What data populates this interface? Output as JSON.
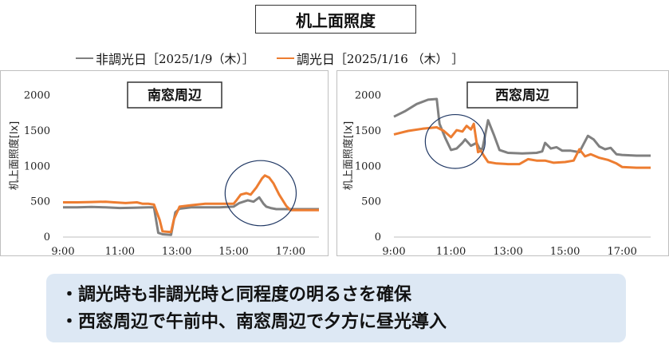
{
  "title": "机上面照度",
  "legend": [
    {
      "name": "非調光日",
      "date": "［2025/1/9（木）］",
      "color": "#808080"
    },
    {
      "name": "調光日",
      "date": "［2025/1/16 （木） ］",
      "color": "#ed7d31"
    }
  ],
  "chart_data": [
    {
      "type": "line",
      "title": "南窓周辺",
      "ylabel": "机上面照度[lx]",
      "xlabel": "",
      "x_ticks": [
        "9:00",
        "11:00",
        "13:00",
        "15:00",
        "17:00"
      ],
      "y_ticks": [
        0,
        500,
        1000,
        1500,
        2000
      ],
      "xlim": [
        9,
        18
      ],
      "ylim": [
        0,
        2300
      ],
      "grid": false,
      "series": [
        {
          "name": "非調光日",
          "color": "#808080",
          "points": [
            [
              9,
              420
            ],
            [
              9.5,
              420
            ],
            [
              10,
              425
            ],
            [
              10.5,
              420
            ],
            [
              11,
              410
            ],
            [
              11.5,
              415
            ],
            [
              12,
              420
            ],
            [
              12.2,
              420
            ],
            [
              12.35,
              60
            ],
            [
              12.5,
              40
            ],
            [
              12.8,
              30
            ],
            [
              12.95,
              350
            ],
            [
              13.1,
              400
            ],
            [
              13.5,
              420
            ],
            [
              14,
              420
            ],
            [
              14.5,
              420
            ],
            [
              15,
              430
            ],
            [
              15.2,
              480
            ],
            [
              15.5,
              520
            ],
            [
              15.7,
              500
            ],
            [
              15.9,
              560
            ],
            [
              16.05,
              470
            ],
            [
              16.15,
              430
            ],
            [
              16.3,
              410
            ],
            [
              16.5,
              395
            ],
            [
              17,
              395
            ],
            [
              17.5,
              395
            ],
            [
              18,
              395
            ]
          ]
        },
        {
          "name": "調光日",
          "color": "#ed7d31",
          "points": [
            [
              9,
              490
            ],
            [
              9.5,
              490
            ],
            [
              10,
              495
            ],
            [
              10.5,
              500
            ],
            [
              10.8,
              490
            ],
            [
              11.2,
              480
            ],
            [
              11.6,
              490
            ],
            [
              11.8,
              470
            ],
            [
              12,
              470
            ],
            [
              12.2,
              460
            ],
            [
              12.4,
              240
            ],
            [
              12.5,
              80
            ],
            [
              12.8,
              70
            ],
            [
              12.9,
              250
            ],
            [
              13.1,
              430
            ],
            [
              13.5,
              450
            ],
            [
              14,
              470
            ],
            [
              14.5,
              470
            ],
            [
              15,
              470
            ],
            [
              15.1,
              520
            ],
            [
              15.25,
              600
            ],
            [
              15.45,
              620
            ],
            [
              15.6,
              600
            ],
            [
              15.8,
              700
            ],
            [
              16,
              830
            ],
            [
              16.1,
              870
            ],
            [
              16.25,
              840
            ],
            [
              16.4,
              760
            ],
            [
              16.6,
              600
            ],
            [
              16.85,
              440
            ],
            [
              17,
              380
            ],
            [
              17.5,
              380
            ],
            [
              18,
              380
            ]
          ]
        }
      ],
      "annotation": {
        "type": "ellipse",
        "center": [
          15.95,
          620
        ],
        "rx_hours": 1.25,
        "ry_lx": 460
      }
    },
    {
      "type": "line",
      "title": "西窓周辺",
      "ylabel": "机上面照度[lx]",
      "xlabel": "",
      "x_ticks": [
        "9:00",
        "11:00",
        "13:00",
        "15:00",
        "17:00"
      ],
      "y_ticks": [
        0,
        500,
        1000,
        1500,
        2000
      ],
      "xlim": [
        9,
        18
      ],
      "ylim": [
        0,
        2300
      ],
      "grid": false,
      "series": [
        {
          "name": "非調光日",
          "color": "#808080",
          "points": [
            [
              9,
              1700
            ],
            [
              9.4,
              1780
            ],
            [
              9.8,
              1880
            ],
            [
              10.2,
              1940
            ],
            [
              10.5,
              1950
            ],
            [
              10.6,
              1600
            ],
            [
              10.8,
              1400
            ],
            [
              11,
              1230
            ],
            [
              11.2,
              1250
            ],
            [
              11.4,
              1330
            ],
            [
              11.5,
              1380
            ],
            [
              11.7,
              1290
            ],
            [
              11.9,
              1330
            ],
            [
              12,
              1250
            ],
            [
              12.1,
              1240
            ],
            [
              12.3,
              1650
            ],
            [
              12.5,
              1450
            ],
            [
              12.7,
              1230
            ],
            [
              13,
              1190
            ],
            [
              13.5,
              1180
            ],
            [
              14,
              1190
            ],
            [
              14.2,
              1210
            ],
            [
              14.3,
              1330
            ],
            [
              14.5,
              1250
            ],
            [
              14.7,
              1270
            ],
            [
              14.9,
              1220
            ],
            [
              15.2,
              1220
            ],
            [
              15.5,
              1200
            ],
            [
              15.8,
              1430
            ],
            [
              16,
              1380
            ],
            [
              16.2,
              1280
            ],
            [
              16.4,
              1240
            ],
            [
              16.6,
              1260
            ],
            [
              16.8,
              1170
            ],
            [
              17,
              1160
            ],
            [
              17.5,
              1150
            ],
            [
              18,
              1150
            ]
          ]
        },
        {
          "name": "調光日",
          "color": "#ed7d31",
          "points": [
            [
              9,
              1450
            ],
            [
              9.5,
              1500
            ],
            [
              10,
              1530
            ],
            [
              10.5,
              1550
            ],
            [
              10.75,
              1500
            ],
            [
              11,
              1410
            ],
            [
              11.2,
              1510
            ],
            [
              11.4,
              1490
            ],
            [
              11.55,
              1570
            ],
            [
              11.7,
              1520
            ],
            [
              11.8,
              1600
            ],
            [
              11.95,
              1200
            ],
            [
              12.05,
              1220
            ],
            [
              12.15,
              1150
            ],
            [
              12.3,
              1060
            ],
            [
              12.6,
              1040
            ],
            [
              13,
              1030
            ],
            [
              13.4,
              1030
            ],
            [
              13.7,
              1100
            ],
            [
              14,
              1080
            ],
            [
              14.3,
              1080
            ],
            [
              14.6,
              1050
            ],
            [
              15,
              1060
            ],
            [
              15.3,
              1080
            ],
            [
              15.5,
              1240
            ],
            [
              15.7,
              1140
            ],
            [
              15.9,
              1170
            ],
            [
              16.2,
              1120
            ],
            [
              16.5,
              1090
            ],
            [
              16.8,
              1040
            ],
            [
              17,
              990
            ],
            [
              17.5,
              980
            ],
            [
              18,
              980
            ]
          ]
        }
      ],
      "annotation": {
        "type": "ellipse",
        "center": [
          11.15,
          1350
        ],
        "rx_hours": 1.05,
        "ry_lx": 380
      }
    }
  ],
  "summary": [
    "・調光時も非調光時と同程度の明るさを確保",
    "・西窓周辺で午前中、南窓周辺で夕方に昼光導入"
  ]
}
